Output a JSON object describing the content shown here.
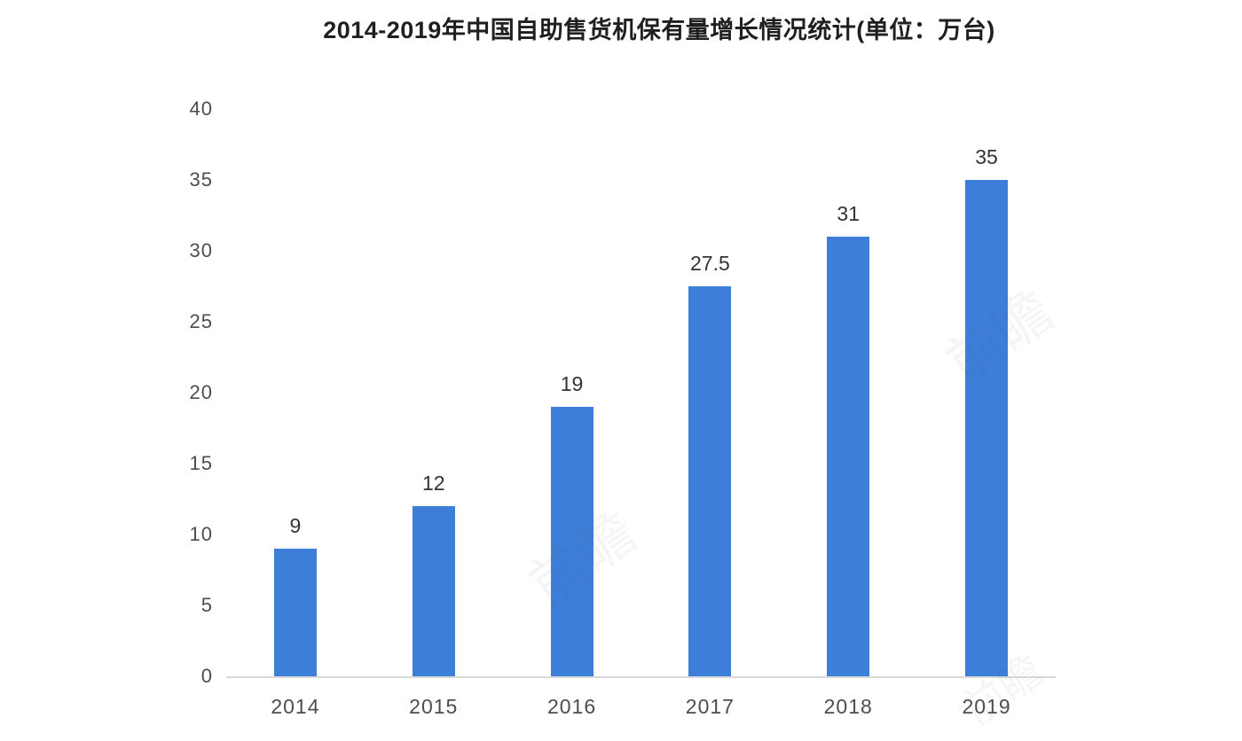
{
  "title": "2014-2019年中国自助售货机保有量增长情况统计(单位：万台)",
  "chart_data": {
    "type": "bar",
    "title": "2014-2019年中国自助售货机保有量增长情况统计(单位：万台)",
    "categories": [
      "2014",
      "2015",
      "2016",
      "2017",
      "2018",
      "2019"
    ],
    "values": [
      9,
      12,
      19,
      27.5,
      31,
      35
    ],
    "value_labels": [
      "9",
      "12",
      "19",
      "27.5",
      "31",
      "35"
    ],
    "xlabel": "",
    "ylabel": "",
    "ylim": [
      0,
      40
    ],
    "yticks": [
      0,
      5,
      10,
      15,
      20,
      25,
      30,
      35,
      40
    ],
    "bar_color": "#3d7ed9",
    "axis_line_color": "#d9d9d9",
    "grid": false,
    "legend_position": "none"
  },
  "watermark": {
    "text": "前瞻"
  }
}
